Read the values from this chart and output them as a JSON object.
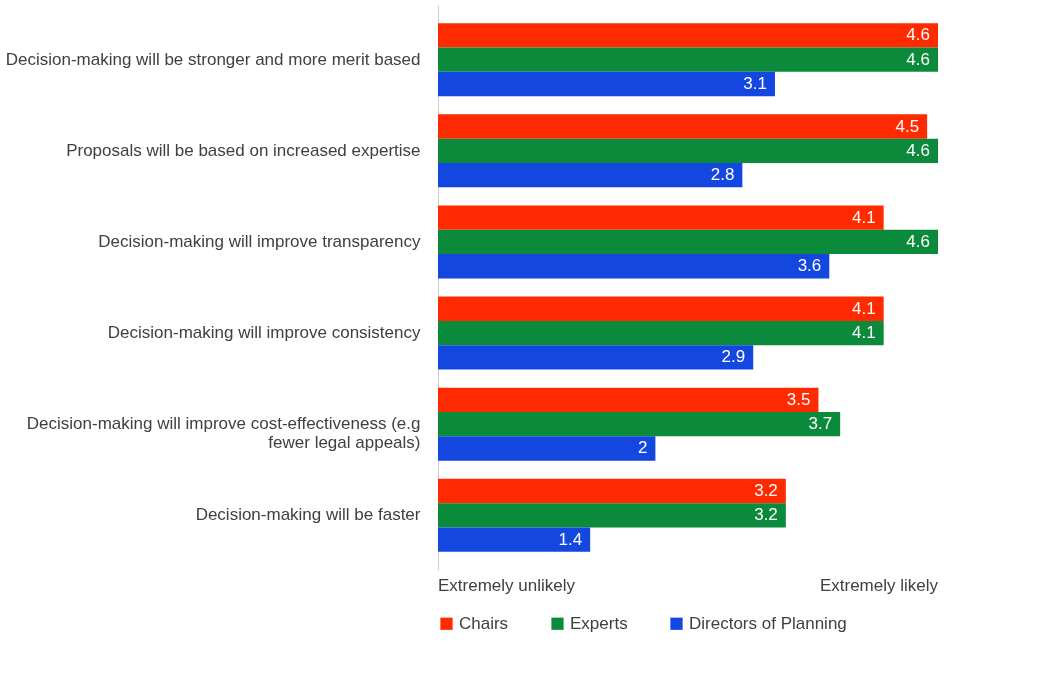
{
  "chart_data": {
    "type": "bar",
    "orientation": "horizontal",
    "categories": [
      "Decision-making will be stronger and more merit based",
      "Proposals will be based on increased expertise",
      "Decision-making will improve transparency",
      "Decision-making will improve consistency",
      "Decision-making will improve cost-effectiveness (e.g\nfewer legal appeals)",
      "Decision-making will be faster"
    ],
    "series": [
      {
        "name": "Chairs",
        "color": "#ff2a00",
        "values": [
          4.6,
          4.5,
          4.1,
          4.1,
          3.5,
          3.2
        ]
      },
      {
        "name": "Experts",
        "color": "#0a8a3a",
        "values": [
          4.6,
          4.6,
          4.6,
          4.1,
          3.7,
          3.2
        ]
      },
      {
        "name": "Directors of Planning",
        "color": "#1446e0",
        "values": [
          3.1,
          2.8,
          3.6,
          2.9,
          2,
          1.4
        ]
      }
    ],
    "annotations": [
      "Extremely unlikely",
      "Extremely likely"
    ],
    "data_labels": true,
    "legend": "bottom",
    "grid": false
  }
}
